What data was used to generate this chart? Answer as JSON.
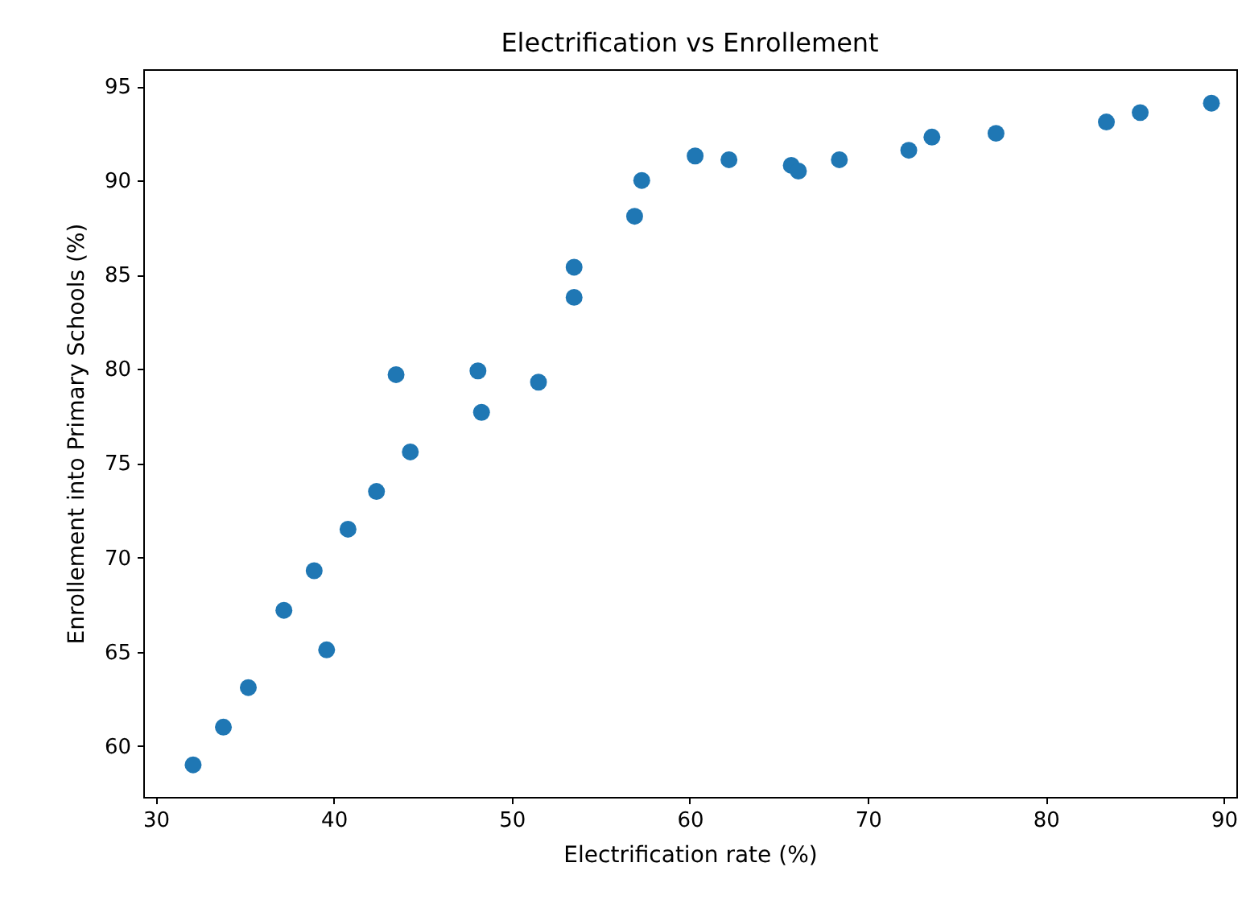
{
  "chart_data": {
    "type": "scatter",
    "title": "Electrification vs Enrollement",
    "xlabel": "Electrification rate (%)",
    "ylabel": "Enrollement into Primary Schools (%)",
    "x": [
      32.1,
      33.8,
      35.2,
      37.2,
      38.9,
      39.6,
      40.8,
      42.4,
      43.5,
      44.3,
      48.1,
      48.3,
      51.5,
      53.5,
      53.5,
      56.9,
      57.3,
      60.3,
      62.2,
      65.7,
      66.1,
      68.4,
      72.3,
      73.6,
      77.2,
      83.4,
      85.3,
      89.3
    ],
    "series": [
      {
        "color": "#1f77b4",
        "values": [
          59.0,
          61.0,
          63.1,
          67.2,
          69.3,
          65.1,
          71.5,
          73.5,
          79.7,
          75.6,
          79.9,
          77.7,
          79.3,
          85.4,
          83.8,
          88.1,
          90.0,
          91.3,
          91.1,
          90.8,
          90.5,
          91.1,
          91.6,
          92.3,
          92.5,
          93.1,
          93.6,
          94.1
        ]
      }
    ],
    "xlim": [
      29.3,
      90.7
    ],
    "xticks": [
      30,
      40,
      50,
      60,
      70,
      80,
      90
    ],
    "ylim": [
      57.3,
      95.9
    ],
    "yticks": [
      60,
      65,
      70,
      75,
      80,
      85,
      90,
      95
    ],
    "grid": false,
    "legend": false,
    "marker": "circle"
  }
}
